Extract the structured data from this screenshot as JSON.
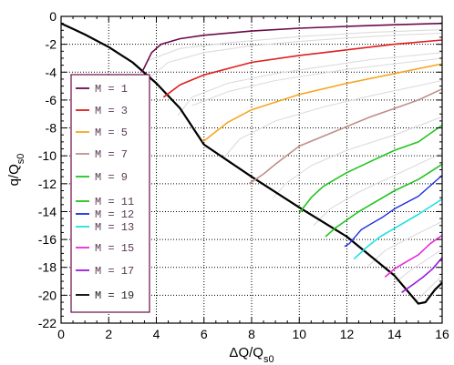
{
  "chart_data": {
    "type": "line",
    "xlabel": "ΔQ/Q",
    "xlabel_sub": "s0",
    "ylabel": "q/Q",
    "ylabel_sub": "s0",
    "xlim": [
      0,
      16
    ],
    "ylim": [
      -22,
      0
    ],
    "x_ticks": [
      0,
      2,
      4,
      6,
      8,
      10,
      12,
      14,
      16
    ],
    "y_ticks": [
      0,
      -2,
      -4,
      -6,
      -8,
      -10,
      -12,
      -14,
      -16,
      -18,
      -20,
      -22
    ],
    "grid": true,
    "legend_position": "left",
    "legend": [
      {
        "label": "M = 1",
        "color": "#6b0a4a"
      },
      {
        "label": "M = 3",
        "color": "#e01e1e"
      },
      {
        "label": "M = 5",
        "color": "#f5a623"
      },
      {
        "label": "M = 7",
        "color": "#bf8f8a"
      },
      {
        "label": "M = 9",
        "color": "#22c422"
      },
      {
        "label": "M = 11",
        "color": "#22c422"
      },
      {
        "label": "M = 12",
        "color": "#1a2ee0"
      },
      {
        "label": "M = 13",
        "color": "#22e0e0"
      },
      {
        "label": "M = 15",
        "color": "#e82ad8"
      },
      {
        "label": "M = 17",
        "color": "#9a1ad6"
      },
      {
        "label": "M = 19",
        "color": "#000000"
      }
    ],
    "series": [
      {
        "color": "#000000",
        "width": 2.2,
        "points": [
          [
            0,
            -0.5
          ],
          [
            0.5,
            -0.9
          ],
          [
            1,
            -1.3
          ],
          [
            2,
            -2.2
          ],
          [
            3,
            -3.3
          ],
          [
            4,
            -4.8
          ],
          [
            5,
            -6.6
          ],
          [
            6,
            -9.2
          ],
          [
            8,
            -11.5
          ],
          [
            10,
            -13.7
          ],
          [
            12,
            -15.8
          ],
          [
            14,
            -18.6
          ],
          [
            15,
            -20.6
          ],
          [
            15.3,
            -20.5
          ],
          [
            15.7,
            -19.6
          ],
          [
            16,
            -19.1
          ]
        ]
      },
      {
        "color": "#6b0a4a",
        "width": 1.6,
        "points": [
          [
            3.4,
            -4.0
          ],
          [
            3.8,
            -2.6
          ],
          [
            4.2,
            -2.0
          ],
          [
            5,
            -1.6
          ],
          [
            6,
            -1.35
          ],
          [
            8,
            -1.05
          ],
          [
            10,
            -0.85
          ],
          [
            12,
            -0.72
          ],
          [
            14,
            -0.6
          ],
          [
            16,
            -0.5
          ]
        ]
      },
      {
        "color": "#e01e1e",
        "width": 1.6,
        "points": [
          [
            4.3,
            -5.8
          ],
          [
            5,
            -4.9
          ],
          [
            6,
            -4.2
          ],
          [
            8,
            -3.3
          ],
          [
            10,
            -2.8
          ],
          [
            12,
            -2.4
          ],
          [
            14,
            -2.0
          ],
          [
            16,
            -1.7
          ]
        ]
      },
      {
        "color": "#f5a623",
        "width": 1.6,
        "points": [
          [
            5.95,
            -9.0
          ],
          [
            7,
            -7.6
          ],
          [
            8,
            -6.7
          ],
          [
            10,
            -5.6
          ],
          [
            12,
            -4.8
          ],
          [
            14,
            -4.1
          ],
          [
            16,
            -3.4
          ]
        ]
      },
      {
        "color": "#bf8f8a",
        "width": 1.6,
        "points": [
          [
            7.9,
            -12.0
          ],
          [
            8.5,
            -11.3
          ],
          [
            9,
            -10.6
          ],
          [
            10,
            -9.3
          ],
          [
            11,
            -8.6
          ],
          [
            12,
            -7.9
          ],
          [
            13,
            -7.2
          ],
          [
            14,
            -6.6
          ],
          [
            15,
            -6.0
          ],
          [
            16,
            -5.2
          ]
        ]
      },
      {
        "color": "#22c422",
        "width": 1.6,
        "points": [
          [
            10,
            -14.1
          ],
          [
            10.5,
            -13.0
          ],
          [
            11,
            -12.2
          ],
          [
            11.5,
            -11.7
          ],
          [
            12,
            -11.2
          ],
          [
            13,
            -10.4
          ],
          [
            14,
            -9.6
          ],
          [
            15,
            -9.0
          ],
          [
            16,
            -7.8
          ]
        ]
      },
      {
        "color": "#22c422",
        "width": 1.6,
        "points": [
          [
            11.1,
            -15.8
          ],
          [
            11.5,
            -15.2
          ],
          [
            12,
            -14.6
          ],
          [
            12.5,
            -14.0
          ],
          [
            13,
            -13.5
          ],
          [
            14,
            -12.5
          ],
          [
            15,
            -11.7
          ],
          [
            16,
            -10.6
          ]
        ]
      },
      {
        "color": "#1a2ee0",
        "width": 1.4,
        "points": [
          [
            11.9,
            -16.5
          ],
          [
            12.1,
            -16.3
          ],
          [
            12.6,
            -15.3
          ],
          [
            13,
            -14.9
          ],
          [
            13.5,
            -14.4
          ],
          [
            14,
            -13.8
          ],
          [
            15,
            -12.9
          ],
          [
            16,
            -11.4
          ]
        ]
      },
      {
        "color": "#22e0e0",
        "width": 1.6,
        "points": [
          [
            12.3,
            -17.4
          ],
          [
            12.8,
            -16.6
          ],
          [
            13.4,
            -15.8
          ],
          [
            14,
            -15.2
          ],
          [
            15,
            -14.2
          ],
          [
            16,
            -13.1
          ]
        ]
      },
      {
        "color": "#e82ad8",
        "width": 1.6,
        "points": [
          [
            13.6,
            -18.7
          ],
          [
            14,
            -18.1
          ],
          [
            14.5,
            -17.6
          ],
          [
            15,
            -17.1
          ],
          [
            15.5,
            -16.3
          ],
          [
            16,
            -15.7
          ]
        ]
      },
      {
        "color": "#9a1ad6",
        "width": 1.6,
        "points": [
          [
            14.3,
            -19.8
          ],
          [
            14.8,
            -19.2
          ],
          [
            15.2,
            -18.7
          ],
          [
            15.6,
            -18.1
          ],
          [
            16,
            -17.3
          ]
        ]
      },
      {
        "color": "#dcdcdc",
        "width": 1.1,
        "points": [
          [
            3.7,
            -4.4
          ],
          [
            4.5,
            -3.3
          ],
          [
            6,
            -2.6
          ],
          [
            8,
            -2.1
          ],
          [
            10,
            -1.8
          ],
          [
            12,
            -1.55
          ],
          [
            14,
            -1.35
          ],
          [
            16,
            -1.2
          ]
        ]
      },
      {
        "color": "#dcdcdc",
        "width": 1.1,
        "points": [
          [
            4.9,
            -7.1
          ],
          [
            5.5,
            -5.8
          ],
          [
            7,
            -4.8
          ],
          [
            9,
            -4.1
          ],
          [
            11,
            -3.6
          ],
          [
            13,
            -3.1
          ],
          [
            16,
            -2.6
          ]
        ]
      },
      {
        "color": "#dcdcdc",
        "width": 1.1,
        "points": [
          [
            6.8,
            -10.2
          ],
          [
            7.5,
            -8.8
          ],
          [
            9,
            -7.5
          ],
          [
            11,
            -6.5
          ],
          [
            13,
            -5.7
          ],
          [
            16,
            -4.6
          ]
        ]
      },
      {
        "color": "#dcdcdc",
        "width": 1.1,
        "points": [
          [
            8.9,
            -13.0
          ],
          [
            9.5,
            -11.9
          ],
          [
            10.5,
            -10.7
          ],
          [
            12,
            -9.6
          ],
          [
            14,
            -8.5
          ],
          [
            16,
            -7.2
          ]
        ]
      },
      {
        "color": "#dcdcdc",
        "width": 1.1,
        "points": [
          [
            10.6,
            -15.0
          ],
          [
            11.3,
            -13.8
          ],
          [
            12.5,
            -12.6
          ],
          [
            14,
            -11.4
          ],
          [
            16,
            -9.8
          ]
        ]
      },
      {
        "color": "#dcdcdc",
        "width": 1.1,
        "points": [
          [
            12.9,
            -17.9
          ],
          [
            13.6,
            -16.8
          ],
          [
            14.6,
            -15.9
          ],
          [
            16,
            -14.7
          ]
        ]
      },
      {
        "color": "#dcdcdc",
        "width": 1.1,
        "points": [
          [
            13.9,
            -19.3
          ],
          [
            14.6,
            -18.3
          ],
          [
            15.3,
            -17.5
          ],
          [
            16,
            -16.7
          ]
        ]
      },
      {
        "color": "#dcdcdc",
        "width": 1.1,
        "points": [
          [
            14.9,
            -20.4
          ],
          [
            15.4,
            -19.6
          ],
          [
            16,
            -18.6
          ]
        ]
      },
      {
        "color": "#dcdcdc",
        "width": 1.1,
        "points": [
          [
            3.6,
            -3.2
          ],
          [
            5,
            -2.3
          ],
          [
            7,
            -1.9
          ],
          [
            10,
            -1.45
          ],
          [
            13,
            -1.15
          ],
          [
            16,
            -0.95
          ]
        ]
      },
      {
        "color": "#dcdcdc",
        "width": 1.1,
        "points": [
          [
            5.5,
            -6.4
          ],
          [
            7,
            -5.4
          ],
          [
            9,
            -4.6
          ],
          [
            12,
            -3.8
          ],
          [
            16,
            -3.0
          ]
        ]
      }
    ]
  }
}
